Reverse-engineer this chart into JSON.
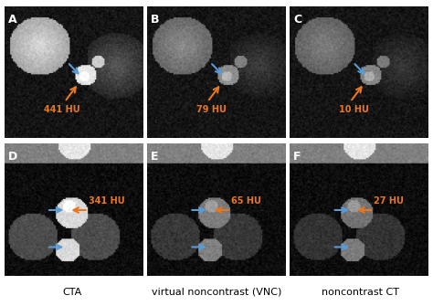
{
  "panel_labels": [
    "A",
    "B",
    "C",
    "D",
    "E",
    "F"
  ],
  "hu_labels": [
    "441 HU",
    "79 HU",
    "10 HU",
    "341 HU",
    "65 HU",
    "27 HU"
  ],
  "col_labels": [
    "CTA",
    "virtual noncontrast (VNC)",
    "noncontrast CT"
  ],
  "orange_color": "#E87722",
  "blue_color": "#5B9BD5",
  "label_color": "#E87722",
  "panel_label_color": "white",
  "background": "black",
  "fig_bg": "white",
  "label_fontsize": 8,
  "panel_label_fontsize": 9,
  "col_label_fontsize": 8
}
